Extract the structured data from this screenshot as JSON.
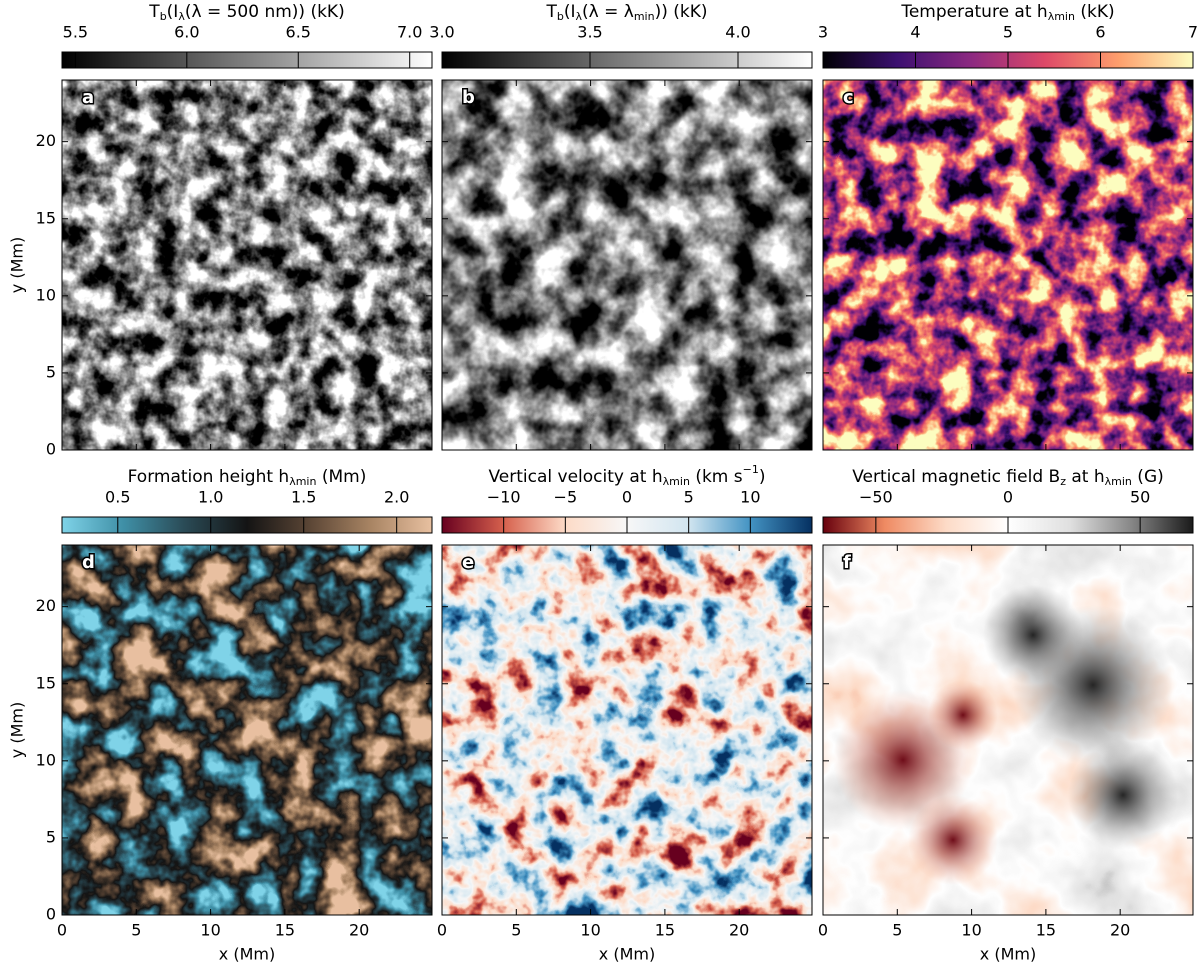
{
  "chart_data": [
    {
      "type": "heatmap",
      "panel_label": "a",
      "colorbar": {
        "title": [
          "T",
          {
            "sub": "b"
          },
          "(I",
          {
            "sub": "λ"
          },
          "(λ = 500 nm)) (kK)"
        ],
        "lim": [
          5.44,
          7.1
        ],
        "ticks": [
          5.5,
          {
            "value": 6,
            "label": "6.0"
          },
          6.5,
          {
            "value": 7,
            "label": "7.0"
          }
        ]
      },
      "colormap": [
        "#000000",
        "#ffffff"
      ],
      "xlim": [
        0,
        24.9
      ],
      "ylim": [
        0,
        24
      ],
      "xticks": [
        0,
        5,
        10,
        15,
        20
      ],
      "yticks": [
        0,
        5,
        10,
        15,
        20
      ],
      "xticklabels": false,
      "yticklabels": true,
      "ylabel": "y (Mm)"
    },
    {
      "type": "heatmap",
      "panel_label": "b",
      "colorbar": {
        "title": [
          "T",
          {
            "sub": "b"
          },
          "(I",
          {
            "sub": "λ"
          },
          "(λ = λ",
          {
            "sub": "min"
          },
          ")) (kK)"
        ],
        "lim": [
          3.0,
          4.25
        ],
        "ticks": [
          {
            "value": 3,
            "label": "3.0"
          },
          3.5,
          {
            "value": 4,
            "label": "4.0"
          }
        ]
      },
      "colormap": [
        "#000000",
        "#ffffff"
      ],
      "xlim": [
        0,
        24.9
      ],
      "ylim": [
        0,
        24
      ],
      "xticks": [
        0,
        5,
        10,
        15,
        20
      ],
      "yticks": [
        0,
        5,
        10,
        15,
        20
      ],
      "xticklabels": false,
      "yticklabels": false
    },
    {
      "type": "heatmap",
      "panel_label": "c",
      "colorbar": {
        "title": [
          "Temperature at h",
          {
            "sub": "λmin"
          },
          " (kK)"
        ],
        "lim": [
          3,
          7
        ],
        "ticks": [
          3,
          4,
          5,
          6,
          7
        ]
      },
      "colormap": [
        "#000004",
        "#3b0f70",
        "#8c2981",
        "#de4968",
        "#fe9f6d",
        "#fcfdbf"
      ],
      "xlim": [
        0,
        24.9
      ],
      "ylim": [
        0,
        24
      ],
      "xticks": [
        0,
        5,
        10,
        15,
        20
      ],
      "yticks": [
        0,
        5,
        10,
        15,
        20
      ],
      "xticklabels": false,
      "yticklabels": false
    },
    {
      "type": "heatmap",
      "panel_label": "d",
      "colorbar": {
        "title": [
          "Formation height h",
          {
            "sub": "λmin"
          },
          " (Mm)"
        ],
        "lim": [
          0.2,
          2.19
        ],
        "ticks": [
          0.5,
          {
            "value": 1,
            "label": "1.0"
          },
          1.5,
          {
            "value": 2,
            "label": "2.0"
          }
        ]
      },
      "colormap": [
        "#7fd3e8",
        "#3f8fa6",
        "#2a4a55",
        "#141414",
        "#5a4535",
        "#a88463",
        "#e8c0a0"
      ],
      "xlim": [
        0,
        24.9
      ],
      "ylim": [
        0,
        24
      ],
      "xticks": [
        0,
        5,
        10,
        15,
        20
      ],
      "yticks": [
        0,
        5,
        10,
        15,
        20
      ],
      "xticklabels": true,
      "yticklabels": true,
      "xlabel": "x (Mm)",
      "ylabel": "y (Mm)"
    },
    {
      "type": "heatmap",
      "panel_label": "e",
      "colorbar": {
        "title": [
          "Vertical velocity at h",
          {
            "sub": "λmin"
          },
          " (km s",
          {
            "sup": "−1"
          },
          ")"
        ],
        "lim": [
          -15,
          15
        ],
        "ticks": [
          {
            "value": -10,
            "label": "−10"
          },
          {
            "value": -5,
            "label": "−5"
          },
          0,
          5,
          10
        ]
      },
      "colormap": [
        "#67001f",
        "#d6604d",
        "#fddbc7",
        "#f7f7f7",
        "#d1e5f0",
        "#4393c3",
        "#053061"
      ],
      "xlim": [
        0,
        24.9
      ],
      "ylim": [
        0,
        24
      ],
      "xticks": [
        0,
        5,
        10,
        15,
        20
      ],
      "yticks": [
        0,
        5,
        10,
        15,
        20
      ],
      "xticklabels": true,
      "yticklabels": false,
      "xlabel": "x (Mm)"
    },
    {
      "type": "heatmap",
      "panel_label": "f",
      "colorbar": {
        "title": [
          "Vertical magnetic field B",
          {
            "sub": "z"
          },
          " at h",
          {
            "sub": "λmin"
          },
          " (G)"
        ],
        "lim": [
          -70,
          70
        ],
        "ticks": [
          {
            "value": -50,
            "label": "−50"
          },
          0,
          50
        ]
      },
      "colormap": [
        "#67000d",
        "#ef8a62",
        "#fddbc7",
        "#ffffff",
        "#e0e0e0",
        "#878787",
        "#1a1a1a"
      ],
      "xlim": [
        0,
        24.9
      ],
      "ylim": [
        0,
        24
      ],
      "xticks": [
        0,
        5,
        10,
        15,
        20
      ],
      "yticks": [
        0,
        5,
        10,
        15,
        20
      ],
      "xticklabels": true,
      "yticklabels": false,
      "xlabel": "x (Mm)"
    }
  ]
}
